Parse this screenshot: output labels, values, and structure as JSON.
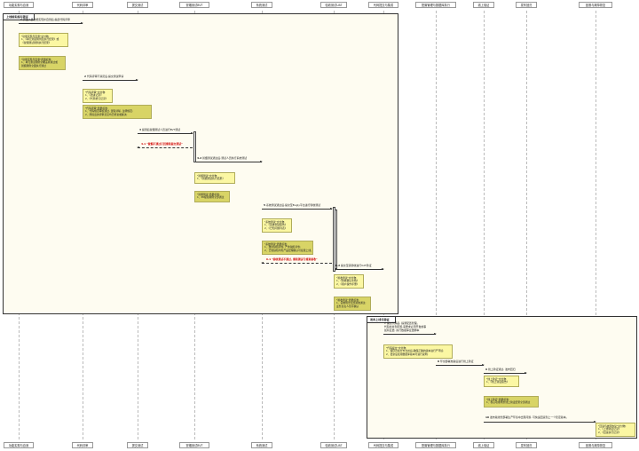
{
  "participants": [
    {
      "id": "p0",
      "label": "功能实现与自测"
    },
    {
      "id": "p1",
      "label": "代码评审"
    },
    {
      "id": "p2",
      "label": "提交测试"
    },
    {
      "id": "p3",
      "label": "冒烟测试BVT"
    },
    {
      "id": "p4",
      "label": "系统测试"
    },
    {
      "id": "p5",
      "label": "验收测试UAT"
    },
    {
      "id": "p6",
      "label": "代码提交与集成"
    },
    {
      "id": "p7",
      "label": "配置管理与数据库执行"
    },
    {
      "id": "p8",
      "label": "线上验证"
    },
    {
      "id": "p9",
      "label": "发布回归"
    },
    {
      "id": "p10",
      "label": "回滚与故障恢复"
    }
  ],
  "frames": [
    {
      "id": "f1",
      "title": "上线前实施与测试"
    },
    {
      "id": "f2",
      "title": "发布上线与验证"
    }
  ],
  "messages": [
    {
      "id": "m1",
      "num": "1",
      "text": "开发人员功能实现并自测后,提起代码评审"
    },
    {
      "id": "m2",
      "num": "2",
      "text": "代码评审不满足后,提交测试申请"
    },
    {
      "id": "m3",
      "num": "3",
      "text": "提测后冒烟测试人员进行BVT测试"
    },
    {
      "id": "m4",
      "num": "4.1",
      "text": "\"冒烟不通过打回重新提交测试\""
    },
    {
      "id": "m5",
      "num": "4.2",
      "text": "冒烟测试通过后,测试人员执行系统测试"
    },
    {
      "id": "m6",
      "num": "5",
      "text": "系统测试通过后,提交至Bugly平台进行验收测试"
    },
    {
      "id": "m7",
      "num": "6.1",
      "text": "\"验收测试不通过, 重新测试与修复验收\""
    },
    {
      "id": "m8",
      "num": "6.2",
      "text": "提交至需验收进行UAT验证"
    },
    {
      "id": "m9",
      "num": "7",
      "text": "提交代码后, 提测配置管理。"
    },
    {
      "id": "m9b",
      "num": "",
      "text": "代码合并到配置,需要求必须开发前事"
    },
    {
      "id": "m9c",
      "num": "",
      "text": "如有变更, 执行数据库变更脚本"
    },
    {
      "id": "m10",
      "num": "8",
      "text": "环境部署准备后进行线上验证"
    },
    {
      "id": "m11",
      "num": "9",
      "text": "线上验证通过, 发布回归"
    },
    {
      "id": "m12",
      "num": "10",
      "text": "发布版线务部署生产环境中出现问题, 可快速回滚到上一个稳定版本。"
    }
  ],
  "notes": [
    {
      "id": "n1",
      "style": "light",
      "lines": [
        "\"功能实现与自测\"交付物:",
        "1、《单元测试用例及执行结果》或",
        "《冒烟测试用例执行结果》"
      ]
    },
    {
      "id": "n2",
      "style": "dark",
      "lines": [
        "\"功能实现与自测\"质量标准:",
        "1、单元测试用例全覆盖并通过或",
        "冒烟用例全面执行通过"
      ]
    },
    {
      "id": "n3",
      "style": "light",
      "lines": [
        "\"代码评审\"交付物:",
        "1、《改进记录》",
        "2、《代码修订记录》"
      ]
    },
    {
      "id": "n4",
      "style": "dark",
      "lines": [
        "\"代码评审\"质量标准:",
        "1、代码规范审核通过, 逻辑清晰, 注释规范;",
        "2、所提出的评审意见均已修复或解决;"
      ]
    },
    {
      "id": "n5",
      "style": "light",
      "lines": [
        "\"冒烟测试\"交付物:",
        "1、《冒烟测试执行结果》"
      ]
    },
    {
      "id": "n6",
      "style": "dark",
      "lines": [
        "\"冒烟测试\"质量标准:",
        "1、P0级别用例全部通过"
      ]
    },
    {
      "id": "n7",
      "style": "light",
      "lines": [
        "\"系统测试\"交付物:",
        "1、《系统测试报告》",
        "2、《已知问题列表》"
      ]
    },
    {
      "id": "n8",
      "style": "dark",
      "lines": [
        "\"系统测试\"质量标准:",
        "1、致命缺陷清零, 严重缺陷清零;",
        "2、已知缺陷均有产品经理确认可接受上线。"
      ]
    },
    {
      "id": "n9",
      "style": "light",
      "lines": [
        "\"验收测试\"交付物:",
        "1、《验收确认文档》",
        "2、《用户操作手册》"
      ]
    },
    {
      "id": "n10",
      "style": "dark",
      "lines": [
        "\"验收测试\"质量标准:",
        "1、需求场景全部验收通过;",
        "业务负责人签字确认"
      ]
    },
    {
      "id": "n11",
      "style": "light",
      "lines": [
        "\"代码提交\"交付物:",
        "1、程序员在分支合并后,确保正确的版本进行产环境;",
        "2、更新后使用数据库版本号进行说明;"
      ]
    },
    {
      "id": "n12",
      "style": "light",
      "lines": [
        "\"线上验证\"交付物:",
        "1、《线上验证报告》"
      ]
    },
    {
      "id": "n13",
      "style": "dark",
      "lines": [
        "\"线上验证\"质量标准:",
        "1、核心功能场景线上验证结果全部通过"
      ]
    },
    {
      "id": "n14",
      "style": "light",
      "lines": [
        "\"回滚与故障恢复\"交付物:",
        "1、《上线验证记录》",
        "2、《回滚执行记录》"
      ]
    }
  ],
  "colors": {
    "note_light": "#fbf7a3",
    "note_dark": "#d8d466",
    "frame_bg": "#fefcf1",
    "reject": "#d10000"
  }
}
